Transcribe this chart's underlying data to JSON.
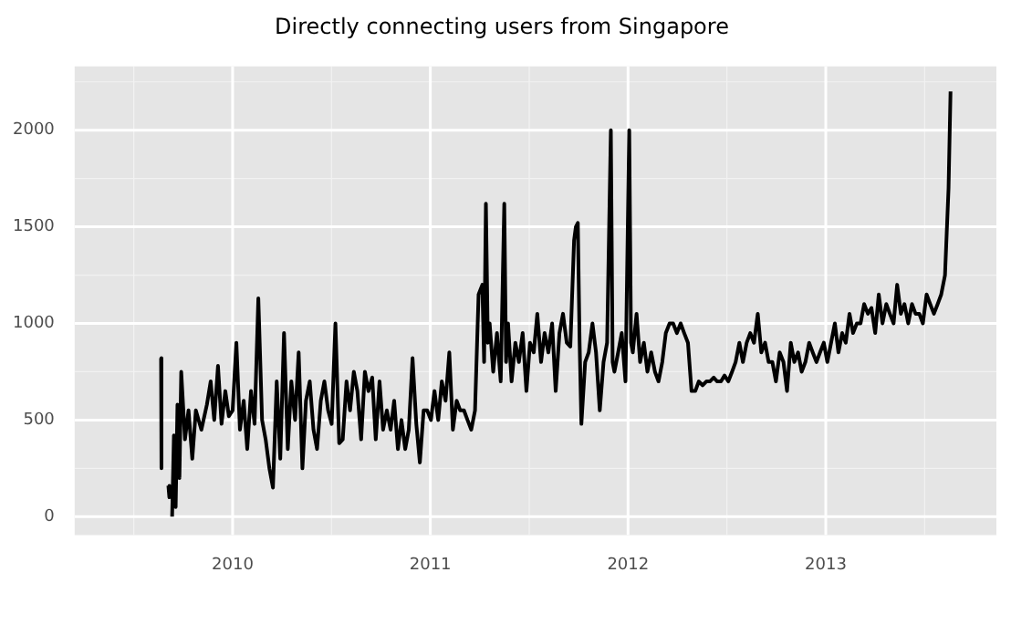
{
  "chart_data": {
    "type": "line",
    "title": "Directly connecting users from Singapore",
    "grid": true,
    "marker": "none",
    "legend": false,
    "xlim": [
      2009.201,
      2013.863
    ],
    "xticks": [
      2010,
      2011,
      2012,
      2013
    ],
    "ylim": [
      -95,
      2330
    ],
    "yticks": [
      0,
      500,
      1000,
      1500,
      2000
    ],
    "series": [
      {
        "color": "#000000",
        "x": [
          2009.638,
          2009.64,
          2009.65,
          2009.675,
          2009.68,
          2009.685,
          2009.694,
          2009.703,
          2009.712,
          2009.721,
          2009.731,
          2009.74,
          2009.759,
          2009.777,
          2009.796,
          2009.814,
          2009.842,
          2009.87,
          2009.889,
          2009.907,
          2009.926,
          2009.944,
          2009.963,
          2009.981,
          2010.0,
          2010.019,
          2010.037,
          2010.056,
          2010.074,
          2010.093,
          2010.111,
          2010.13,
          2010.149,
          2010.167,
          2010.186,
          2010.204,
          2010.223,
          2010.241,
          2010.26,
          2010.279,
          2010.297,
          2010.316,
          2010.334,
          2010.353,
          2010.371,
          2010.39,
          2010.409,
          2010.427,
          2010.446,
          2010.464,
          2010.483,
          2010.501,
          2010.52,
          2010.539,
          2010.557,
          2010.576,
          2010.594,
          2010.613,
          2010.631,
          2010.65,
          2010.669,
          2010.687,
          2010.706,
          2010.724,
          2010.743,
          2010.761,
          2010.78,
          2010.799,
          2010.817,
          2010.836,
          2010.854,
          2010.873,
          2010.891,
          2010.91,
          2010.929,
          2010.947,
          2010.966,
          2010.984,
          2011.003,
          2011.021,
          2011.04,
          2011.058,
          2011.077,
          2011.096,
          2011.114,
          2011.133,
          2011.151,
          2011.17,
          2011.188,
          2011.207,
          2011.226,
          2011.244,
          2011.263,
          2011.272,
          2011.281,
          2011.291,
          2011.3,
          2011.318,
          2011.337,
          2011.356,
          2011.374,
          2011.383,
          2011.393,
          2011.411,
          2011.43,
          2011.448,
          2011.467,
          2011.486,
          2011.504,
          2011.523,
          2011.541,
          2011.56,
          2011.578,
          2011.597,
          2011.616,
          2011.634,
          2011.653,
          2011.671,
          2011.69,
          2011.708,
          2011.727,
          2011.736,
          2011.746,
          2011.755,
          2011.764,
          2011.783,
          2011.801,
          2011.82,
          2011.838,
          2011.857,
          2011.876,
          2011.894,
          2011.913,
          2011.922,
          2011.931,
          2011.95,
          2011.968,
          2011.987,
          2012.006,
          2012.015,
          2012.024,
          2012.043,
          2012.061,
          2012.08,
          2012.098,
          2012.117,
          2012.136,
          2012.154,
          2012.173,
          2012.191,
          2012.21,
          2012.228,
          2012.247,
          2012.266,
          2012.284,
          2012.303,
          2012.321,
          2012.34,
          2012.358,
          2012.377,
          2012.396,
          2012.414,
          2012.433,
          2012.451,
          2012.47,
          2012.488,
          2012.507,
          2012.526,
          2012.544,
          2012.563,
          2012.581,
          2012.6,
          2012.618,
          2012.637,
          2012.656,
          2012.674,
          2012.693,
          2012.711,
          2012.73,
          2012.748,
          2012.767,
          2012.786,
          2012.804,
          2012.823,
          2012.841,
          2012.86,
          2012.878,
          2012.897,
          2012.916,
          2012.934,
          2012.953,
          2012.971,
          2012.99,
          2013.008,
          2013.027,
          2013.046,
          2013.064,
          2013.083,
          2013.101,
          2013.12,
          2013.138,
          2013.157,
          2013.176,
          2013.194,
          2013.213,
          2013.231,
          2013.25,
          2013.268,
          2013.287,
          2013.306,
          2013.324,
          2013.343,
          2013.361,
          2013.38,
          2013.398,
          2013.417,
          2013.436,
          2013.454,
          2013.473,
          2013.491,
          2013.51,
          2013.528,
          2013.547,
          2013.566,
          2013.584,
          2013.603,
          2013.621,
          2013.631
        ],
        "values": [
          820,
          250,
          null,
          160,
          100,
          null,
          0,
          420,
          50,
          580,
          200,
          750,
          400,
          550,
          300,
          550,
          450,
          580,
          700,
          500,
          780,
          480,
          650,
          520,
          550,
          900,
          450,
          600,
          350,
          650,
          480,
          1130,
          500,
          400,
          250,
          150,
          700,
          300,
          950,
          350,
          700,
          500,
          850,
          250,
          600,
          700,
          450,
          350,
          600,
          700,
          550,
          480,
          1000,
          380,
          400,
          700,
          550,
          750,
          650,
          400,
          750,
          650,
          720,
          400,
          700,
          450,
          550,
          450,
          600,
          350,
          500,
          350,
          450,
          820,
          480,
          280,
          550,
          550,
          500,
          650,
          500,
          700,
          600,
          850,
          450,
          600,
          550,
          550,
          500,
          450,
          550,
          1150,
          1200,
          800,
          1620,
          900,
          1000,
          750,
          950,
          700,
          1620,
          800,
          1000,
          700,
          900,
          800,
          950,
          650,
          900,
          850,
          1050,
          800,
          950,
          850,
          1000,
          650,
          950,
          1050,
          900,
          880,
          1430,
          1500,
          1520,
          900,
          480,
          800,
          850,
          1000,
          850,
          550,
          800,
          900,
          2000,
          800,
          750,
          850,
          950,
          700,
          2000,
          900,
          850,
          1050,
          800,
          900,
          750,
          850,
          750,
          700,
          800,
          950,
          1000,
          1000,
          950,
          1000,
          950,
          900,
          650,
          650,
          700,
          680,
          700,
          700,
          720,
          700,
          700,
          730,
          700,
          750,
          800,
          900,
          800,
          900,
          950,
          900,
          1050,
          850,
          900,
          800,
          800,
          700,
          850,
          800,
          650,
          900,
          800,
          850,
          750,
          800,
          900,
          850,
          800,
          850,
          900,
          800,
          900,
          1000,
          850,
          950,
          900,
          1050,
          950,
          1000,
          1000,
          1100,
          1050,
          1080,
          950,
          1150,
          1000,
          1100,
          1050,
          1000,
          1200,
          1050,
          1100,
          1000,
          1100,
          1050,
          1050,
          1000,
          1150,
          1100,
          1050,
          1100,
          1150,
          1250,
          1700,
          2200
        ]
      }
    ]
  }
}
